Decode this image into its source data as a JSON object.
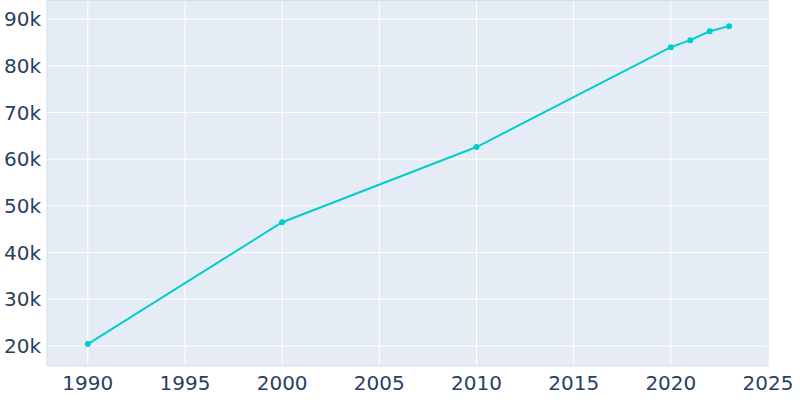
{
  "chart_data": {
    "type": "line",
    "x": [
      1990,
      2000,
      2010,
      2020,
      2021,
      2022,
      2023
    ],
    "values": [
      20400,
      46500,
      62600,
      84000,
      85500,
      87400,
      88500
    ],
    "color": "#00cec9",
    "marker": "circle",
    "xlim": [
      1987.9,
      2025
    ],
    "xticks": [
      1990,
      1995,
      2000,
      2005,
      2010,
      2015,
      2020,
      2025
    ],
    "ylim": [
      15700,
      94100
    ],
    "yticks": [
      {
        "value": 20000,
        "label": "20k"
      },
      {
        "value": 30000,
        "label": "30k"
      },
      {
        "value": 40000,
        "label": "40k"
      },
      {
        "value": 50000,
        "label": "50k"
      },
      {
        "value": 60000,
        "label": "60k"
      },
      {
        "value": 70000,
        "label": "70k"
      },
      {
        "value": 80000,
        "label": "80k"
      },
      {
        "value": 90000,
        "label": "90k"
      }
    ],
    "grid": true
  }
}
